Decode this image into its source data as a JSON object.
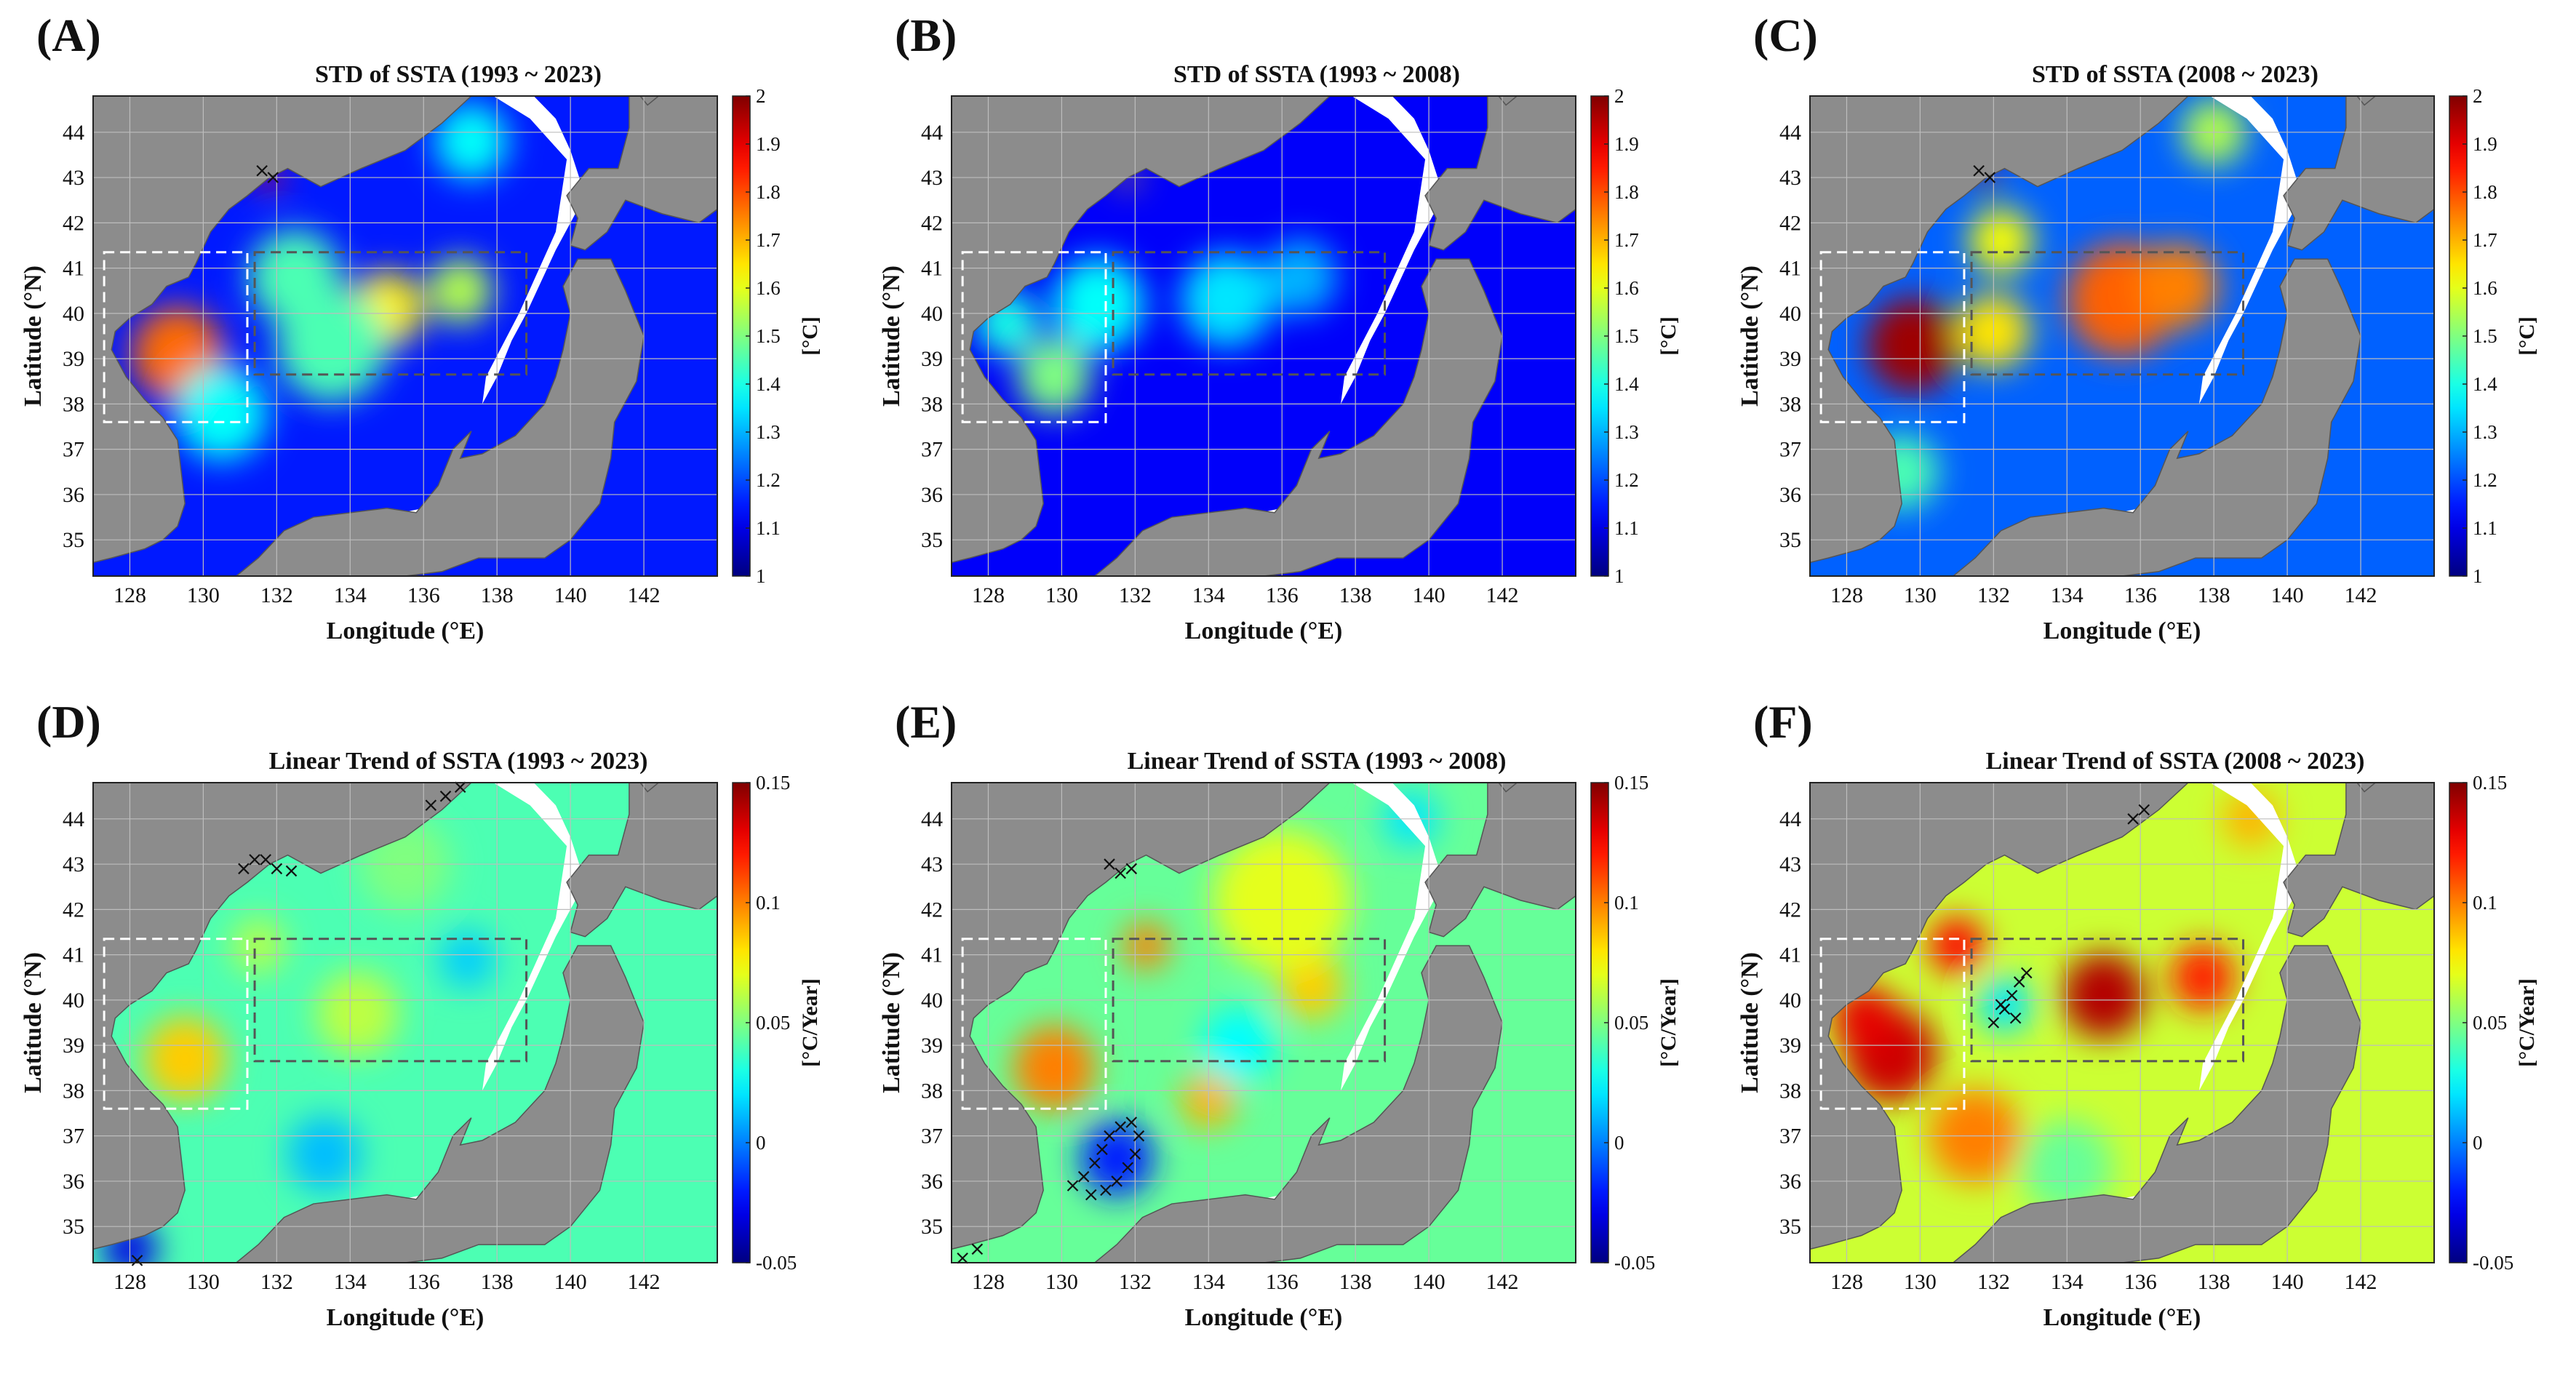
{
  "figure": {
    "x_axis_label": "Longitude (°E)",
    "y_axis_label": "Latitude (°N)"
  },
  "chart_data": [
    {
      "id": "A",
      "label": "(A)",
      "type": "heatmap",
      "title": "STD of SSTA (1993 ~ 2023)",
      "xlabel": "Longitude (°E)",
      "ylabel": "Latitude (°N)",
      "xlim": [
        127,
        144
      ],
      "ylim": [
        34.2,
        44.8
      ],
      "xticks": [
        128,
        130,
        132,
        134,
        136,
        138,
        140,
        142
      ],
      "yticks": [
        35,
        36,
        37,
        38,
        39,
        40,
        41,
        42,
        43,
        44
      ],
      "colorbar": {
        "unit": "[°C]",
        "min": 1,
        "max": 2,
        "ticks": [
          "1",
          "1.1",
          "1.2",
          "1.3",
          "1.4",
          "1.5",
          "1.6",
          "1.7",
          "1.8",
          "1.9",
          "2"
        ]
      },
      "background_value": 1.15,
      "hotspots": [
        {
          "lon": 129.3,
          "lat": 39.1,
          "value": 1.77,
          "radius": 1.0
        },
        {
          "lon": 135.0,
          "lat": 40.1,
          "value": 1.64,
          "radius": 0.8
        },
        {
          "lon": 137.0,
          "lat": 40.5,
          "value": 1.55,
          "radius": 0.7
        },
        {
          "lon": 132.5,
          "lat": 40.8,
          "value": 1.45,
          "radius": 1.0
        },
        {
          "lon": 133.5,
          "lat": 39.3,
          "value": 1.45,
          "radius": 1.2
        },
        {
          "lon": 137.3,
          "lat": 43.8,
          "value": 1.38,
          "radius": 0.8
        },
        {
          "lon": 131.8,
          "lat": 43.0,
          "value": 1.85,
          "radius": 0.25
        },
        {
          "lon": 130.5,
          "lat": 37.8,
          "value": 1.38,
          "radius": 1.0
        }
      ],
      "hatch_points": [
        [
          131.6,
          43.15
        ],
        [
          131.9,
          43.0
        ]
      ]
    },
    {
      "id": "B",
      "label": "(B)",
      "type": "heatmap",
      "title": "STD of SSTA (1993 ~ 2008)",
      "xlabel": "Longitude (°E)",
      "ylabel": "Latitude (°N)",
      "xlim": [
        127,
        144
      ],
      "ylim": [
        34.2,
        44.8
      ],
      "xticks": [
        128,
        130,
        132,
        134,
        136,
        138,
        140,
        142
      ],
      "yticks": [
        35,
        36,
        37,
        38,
        39,
        40,
        41,
        42,
        43,
        44
      ],
      "colorbar": {
        "unit": "[°C]",
        "min": 1,
        "max": 2,
        "ticks": [
          "1",
          "1.1",
          "1.2",
          "1.3",
          "1.4",
          "1.5",
          "1.6",
          "1.7",
          "1.8",
          "1.9",
          "2"
        ]
      },
      "background_value": 1.12,
      "hotspots": [
        {
          "lon": 129.8,
          "lat": 38.6,
          "value": 1.5,
          "radius": 0.8
        },
        {
          "lon": 131.0,
          "lat": 40.2,
          "value": 1.38,
          "radius": 1.0
        },
        {
          "lon": 134.5,
          "lat": 40.3,
          "value": 1.35,
          "radius": 1.0
        },
        {
          "lon": 136.5,
          "lat": 40.8,
          "value": 1.3,
          "radius": 0.8
        },
        {
          "lon": 128.5,
          "lat": 39.8,
          "value": 1.4,
          "radius": 0.7
        },
        {
          "lon": 131.8,
          "lat": 43.0,
          "value": 1.7,
          "radius": 0.2
        }
      ],
      "hatch_points": []
    },
    {
      "id": "C",
      "label": "(C)",
      "type": "heatmap",
      "title": "STD of SSTA (2008 ~ 2023)",
      "xlabel": "Longitude (°E)",
      "ylabel": "Latitude (°N)",
      "xlim": [
        127,
        144
      ],
      "ylim": [
        34.2,
        44.8
      ],
      "xticks": [
        128,
        130,
        132,
        134,
        136,
        138,
        140,
        142
      ],
      "yticks": [
        35,
        36,
        37,
        38,
        39,
        40,
        41,
        42,
        43,
        44
      ],
      "colorbar": {
        "unit": "[°C]",
        "min": 1,
        "max": 2,
        "ticks": [
          "1",
          "1.1",
          "1.2",
          "1.3",
          "1.4",
          "1.5",
          "1.6",
          "1.7",
          "1.8",
          "1.9",
          "2"
        ]
      },
      "background_value": 1.22,
      "hotspots": [
        {
          "lon": 129.8,
          "lat": 39.3,
          "value": 1.97,
          "radius": 1.0
        },
        {
          "lon": 135.5,
          "lat": 40.3,
          "value": 1.78,
          "radius": 1.2
        },
        {
          "lon": 137.0,
          "lat": 40.6,
          "value": 1.75,
          "radius": 0.9
        },
        {
          "lon": 132.0,
          "lat": 39.6,
          "value": 1.65,
          "radius": 0.8
        },
        {
          "lon": 132.2,
          "lat": 41.6,
          "value": 1.62,
          "radius": 0.7
        },
        {
          "lon": 138.0,
          "lat": 44.0,
          "value": 1.55,
          "radius": 0.7
        },
        {
          "lon": 131.8,
          "lat": 43.0,
          "value": 1.95,
          "radius": 0.25
        },
        {
          "lon": 129.5,
          "lat": 36.5,
          "value": 1.45,
          "radius": 0.8
        }
      ],
      "hatch_points": [
        [
          131.6,
          43.15
        ],
        [
          131.9,
          43.0
        ]
      ]
    },
    {
      "id": "D",
      "label": "(D)",
      "type": "heatmap",
      "title": "Linear Trend of SSTA (1993 ~ 2023)",
      "xlabel": "Longitude (°E)",
      "ylabel": "Latitude (°N)",
      "xlim": [
        127,
        144
      ],
      "ylim": [
        34.2,
        44.8
      ],
      "xticks": [
        128,
        130,
        132,
        134,
        136,
        138,
        140,
        142
      ],
      "yticks": [
        35,
        36,
        37,
        38,
        39,
        40,
        41,
        42,
        43,
        44
      ],
      "colorbar": {
        "unit": "[°C/Year]",
        "min": -0.05,
        "max": 0.15,
        "ticks": [
          "-0.05",
          "0",
          "0.05",
          "0.1",
          "0.15"
        ]
      },
      "background_value": 0.04,
      "hotspots": [
        {
          "lon": 129.5,
          "lat": 38.7,
          "value": 0.085,
          "radius": 0.9
        },
        {
          "lon": 134.2,
          "lat": 39.7,
          "value": 0.062,
          "radius": 0.9
        },
        {
          "lon": 133.3,
          "lat": 36.6,
          "value": 0.012,
          "radius": 0.8
        },
        {
          "lon": 137.2,
          "lat": 40.9,
          "value": 0.015,
          "radius": 0.6
        },
        {
          "lon": 131.5,
          "lat": 41.2,
          "value": 0.06,
          "radius": 0.6
        },
        {
          "lon": 128.0,
          "lat": 34.5,
          "value": -0.03,
          "radius": 0.6
        },
        {
          "lon": 135.5,
          "lat": 43.0,
          "value": 0.05,
          "radius": 1.0
        }
      ],
      "hatch_points": [
        [
          131.1,
          42.9
        ],
        [
          131.4,
          43.1
        ],
        [
          131.7,
          43.1
        ],
        [
          132.0,
          42.9
        ],
        [
          132.4,
          42.85
        ],
        [
          136.2,
          44.3
        ],
        [
          136.6,
          44.5
        ],
        [
          137.0,
          44.7
        ],
        [
          128.2,
          34.25
        ]
      ]
    },
    {
      "id": "E",
      "label": "(E)",
      "type": "heatmap",
      "title": "Linear Trend of SSTA (1993 ~ 2008)",
      "xlabel": "Longitude (°E)",
      "ylabel": "Latitude (°N)",
      "xlim": [
        127,
        144
      ],
      "ylim": [
        34.2,
        44.8
      ],
      "xticks": [
        128,
        130,
        132,
        134,
        136,
        138,
        140,
        142
      ],
      "yticks": [
        35,
        36,
        37,
        38,
        39,
        40,
        41,
        42,
        43,
        44
      ],
      "colorbar": {
        "unit": "[°C/Year]",
        "min": -0.05,
        "max": 0.15,
        "ticks": [
          "-0.05",
          "0",
          "0.05",
          "0.1",
          "0.15"
        ]
      },
      "background_value": 0.045,
      "hotspots": [
        {
          "lon": 129.8,
          "lat": 38.5,
          "value": 0.1,
          "radius": 0.9
        },
        {
          "lon": 132.3,
          "lat": 41.2,
          "value": 0.1,
          "radius": 0.5
        },
        {
          "lon": 136.8,
          "lat": 40.3,
          "value": 0.085,
          "radius": 0.7
        },
        {
          "lon": 134.0,
          "lat": 37.8,
          "value": 0.09,
          "radius": 0.6
        },
        {
          "lon": 136.0,
          "lat": 42.2,
          "value": 0.07,
          "radius": 1.5
        },
        {
          "lon": 131.5,
          "lat": 36.5,
          "value": -0.02,
          "radius": 0.8
        },
        {
          "lon": 134.8,
          "lat": 39.0,
          "value": 0.025,
          "radius": 0.8
        },
        {
          "lon": 139.5,
          "lat": 44.0,
          "value": 0.02,
          "radius": 0.6
        }
      ],
      "hatch_points": [
        [
          130.3,
          35.9
        ],
        [
          130.6,
          36.1
        ],
        [
          130.9,
          36.4
        ],
        [
          131.1,
          36.7
        ],
        [
          131.3,
          37.0
        ],
        [
          131.6,
          37.2
        ],
        [
          131.9,
          37.3
        ],
        [
          132.1,
          37.0
        ],
        [
          132.0,
          36.6
        ],
        [
          131.8,
          36.3
        ],
        [
          131.5,
          36.0
        ],
        [
          131.2,
          35.8
        ],
        [
          130.8,
          35.7
        ],
        [
          131.3,
          43.0
        ],
        [
          131.6,
          42.8
        ],
        [
          131.9,
          42.9
        ],
        [
          127.3,
          34.3
        ],
        [
          127.7,
          34.5
        ]
      ]
    },
    {
      "id": "F",
      "label": "(F)",
      "type": "heatmap",
      "title": "Linear Trend of SSTA (2008 ~ 2023)",
      "xlabel": "Longitude (°E)",
      "ylabel": "Latitude (°N)",
      "xlim": [
        127,
        144
      ],
      "ylim": [
        34.2,
        44.8
      ],
      "xticks": [
        128,
        130,
        132,
        134,
        136,
        138,
        140,
        142
      ],
      "yticks": [
        35,
        36,
        37,
        38,
        39,
        40,
        41,
        42,
        43,
        44
      ],
      "colorbar": {
        "unit": "[°C/Year]",
        "min": -0.05,
        "max": 0.15,
        "ticks": [
          "-0.05",
          "0",
          "0.05",
          "0.1",
          "0.15"
        ]
      },
      "background_value": 0.065,
      "hotspots": [
        {
          "lon": 129.2,
          "lat": 38.8,
          "value": 0.135,
          "radius": 1.0
        },
        {
          "lon": 128.5,
          "lat": 39.6,
          "value": 0.13,
          "radius": 0.7
        },
        {
          "lon": 131.0,
          "lat": 41.2,
          "value": 0.125,
          "radius": 0.6
        },
        {
          "lon": 135.0,
          "lat": 40.1,
          "value": 0.14,
          "radius": 0.9
        },
        {
          "lon": 137.7,
          "lat": 40.5,
          "value": 0.12,
          "radius": 0.7
        },
        {
          "lon": 132.3,
          "lat": 39.9,
          "value": 0.02,
          "radius": 0.6
        },
        {
          "lon": 131.5,
          "lat": 37.0,
          "value": 0.1,
          "radius": 1.0
        },
        {
          "lon": 134.0,
          "lat": 36.3,
          "value": 0.045,
          "radius": 1.0
        },
        {
          "lon": 139.0,
          "lat": 44.0,
          "value": 0.09,
          "radius": 0.6
        }
      ],
      "hatch_points": [
        [
          132.0,
          39.5
        ],
        [
          132.3,
          39.8
        ],
        [
          132.5,
          40.1
        ],
        [
          132.7,
          40.4
        ],
        [
          132.9,
          40.6
        ],
        [
          132.2,
          39.9
        ],
        [
          132.6,
          39.6
        ],
        [
          135.8,
          44.0
        ],
        [
          136.1,
          44.2
        ]
      ]
    }
  ]
}
